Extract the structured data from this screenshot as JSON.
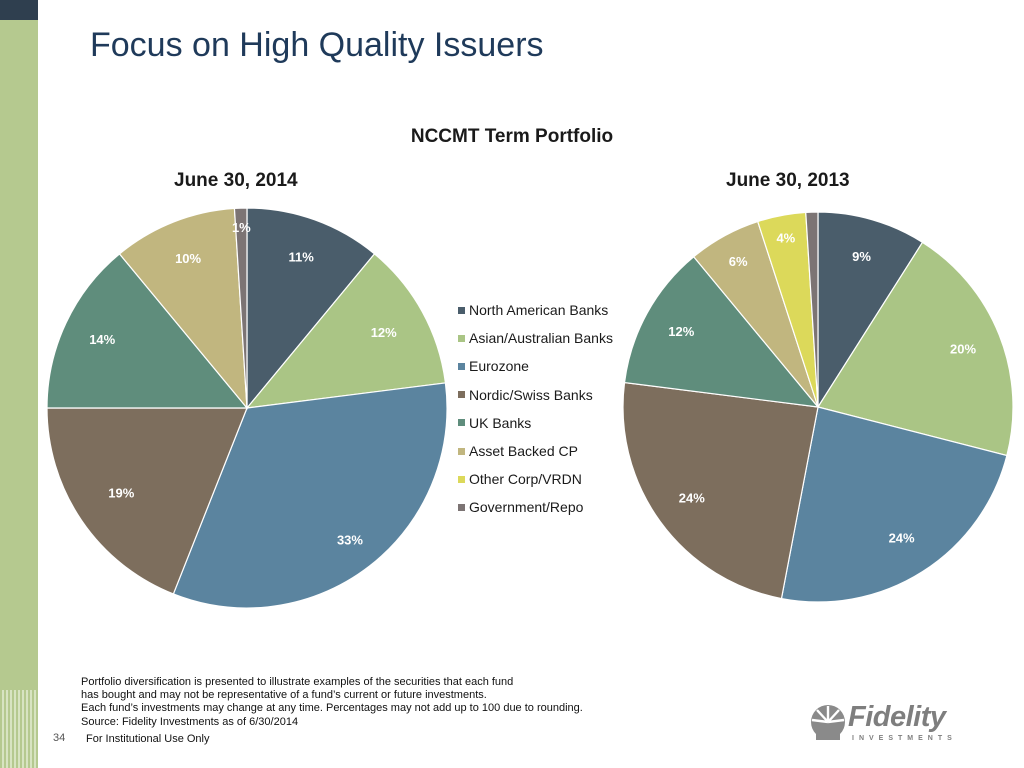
{
  "slide": {
    "title": "Focus on High Quality Issuers",
    "page_number": "34",
    "footer_label": "For Institutional Use Only",
    "footnote_lines": [
      "Portfolio diversification is presented to illustrate examples of the securities that each fund",
      "has bought and may not be representative of a fund’s current or future investments.",
      "Each fund’s investments may change at any time. Percentages may not add up to  100 due to rounding.",
      "Source:  Fidelity Investments as of 6/30/2014"
    ],
    "logo": {
      "word": "Fidelity",
      "sub": "INVESTMENTS"
    }
  },
  "chart_data": {
    "type": "pie",
    "title": "NCCMT Term Portfolio",
    "legend_position": "center",
    "categories": [
      "North American Banks",
      "Asian/Australian Banks",
      "Eurozone",
      "Nordic/Swiss Banks",
      "UK Banks",
      "Asset Backed CP",
      "Other Corp/VRDN",
      "Government/Repo"
    ],
    "colors": [
      "#4a5d6b",
      "#aac585",
      "#5b849f",
      "#7d6e5d",
      "#5f8d7c",
      "#c1b67f",
      "#dcd95a",
      "#7c7474"
    ],
    "pies": [
      {
        "name": "June 30, 2014",
        "values": [
          11,
          12,
          33,
          19,
          14,
          10,
          0,
          1
        ],
        "labels": [
          "11%",
          "12%",
          "33%",
          "19%",
          "14%",
          "10%",
          "",
          "1%"
        ]
      },
      {
        "name": "June 30, 2013",
        "values": [
          9,
          20,
          24,
          24,
          12,
          6,
          4,
          1
        ],
        "labels": [
          "9%",
          "20%",
          "24%",
          "24%",
          "12%",
          "6%",
          "4%",
          "1%"
        ]
      }
    ]
  }
}
